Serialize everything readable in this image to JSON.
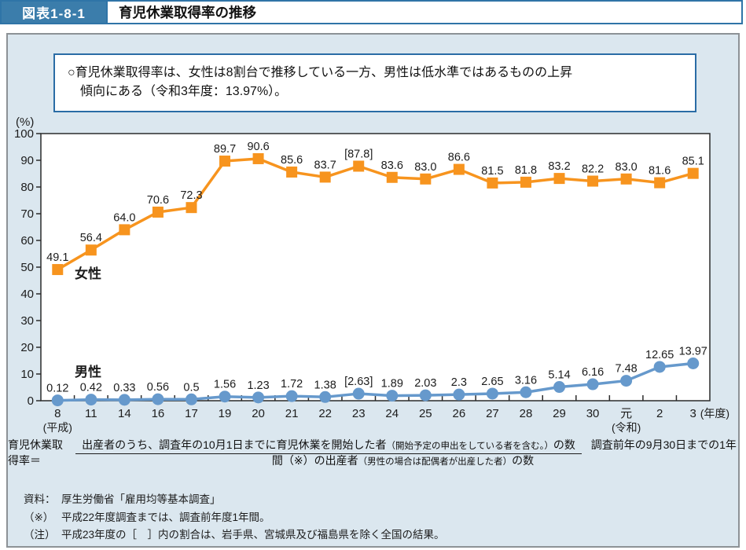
{
  "header": {
    "figure_label": "図表1-8-1",
    "title": "育児休業取得率の推移"
  },
  "summary_box": {
    "line1": "○育児休業取得率は、女性は8割台で推移している一方、男性は低水準ではあるものの上昇",
    "line2": "傾向にある（令和3年度：13.97%）。"
  },
  "chart_data": {
    "type": "line",
    "unit_label": "(%)",
    "ylim": [
      0,
      100
    ],
    "ytick_interval": 10,
    "grid": false,
    "legend_position": "inline-near-series",
    "categories": [
      "8",
      "11",
      "14",
      "16",
      "17",
      "19",
      "20",
      "21",
      "22",
      "23",
      "24",
      "25",
      "26",
      "27",
      "28",
      "29",
      "30",
      "元",
      "2",
      "3"
    ],
    "category_sub_labels": {
      "0": "(平成)",
      "17": "(令和)"
    },
    "x_axis_suffix": "(年度)",
    "series": [
      {
        "name": "女性",
        "color": "#F7941E",
        "marker": "square",
        "values": [
          49.1,
          56.4,
          64.0,
          70.6,
          72.3,
          89.7,
          90.6,
          85.6,
          83.7,
          87.8,
          83.6,
          83.0,
          86.6,
          81.5,
          81.8,
          83.2,
          82.2,
          83.0,
          81.6,
          85.1
        ],
        "labels": [
          "49.1",
          "56.4",
          "64.0",
          "70.6",
          "72.3",
          "89.7",
          "90.6",
          "85.6",
          "83.7",
          "[87.8]",
          "83.6",
          "83.0",
          "86.6",
          "81.5",
          "81.8",
          "83.2",
          "82.2",
          "83.0",
          "81.6",
          "85.1"
        ]
      },
      {
        "name": "男性",
        "color": "#6699CC",
        "marker": "circle",
        "values": [
          0.12,
          0.42,
          0.33,
          0.56,
          0.5,
          1.56,
          1.23,
          1.72,
          1.38,
          2.63,
          1.89,
          2.03,
          2.3,
          2.65,
          3.16,
          5.14,
          6.16,
          7.48,
          12.65,
          13.97
        ],
        "labels": [
          "0.12",
          "0.42",
          "0.33",
          "0.56",
          "0.5",
          "1.56",
          "1.23",
          "1.72",
          "1.38",
          "[2.63]",
          "1.89",
          "2.03",
          "2.3",
          "2.65",
          "3.16",
          "5.14",
          "6.16",
          "7.48",
          "12.65",
          "13.97"
        ]
      }
    ]
  },
  "formula": {
    "lhs": "育児休業取得率＝",
    "numerator_main": "出産者のうち、調査年の10月1日までに育児休業を開始した者",
    "numerator_small": "（開始予定の申出をしている者を含む。）",
    "numerator_tail": "の数",
    "denominator_main": "調査前年の9月30日までの1年間（※）の出産者",
    "denominator_small": "（男性の場合は配偶者が出産した者）",
    "denominator_tail": "の数"
  },
  "notes": [
    {
      "label": "資料：",
      "text": "厚生労働省「雇用均等基本調査」"
    },
    {
      "label": "（※）",
      "text": "平成22年度調査までは、調査前年度1年間。"
    },
    {
      "label": "（注）",
      "text": "平成23年度の［　］内の割合は、岩手県、宮城県及び福島県を除く全国の結果。"
    }
  ],
  "colors": {
    "header_blue": "#3B7DAB",
    "header_border": "#2F74A7",
    "panel_bg": "#DBE7EF",
    "panel_border": "#8D9296",
    "note_box_border": "#2A6CA5",
    "female_orange": "#F7941E",
    "male_blue": "#6699CC",
    "axis": "#2B2B2B"
  }
}
